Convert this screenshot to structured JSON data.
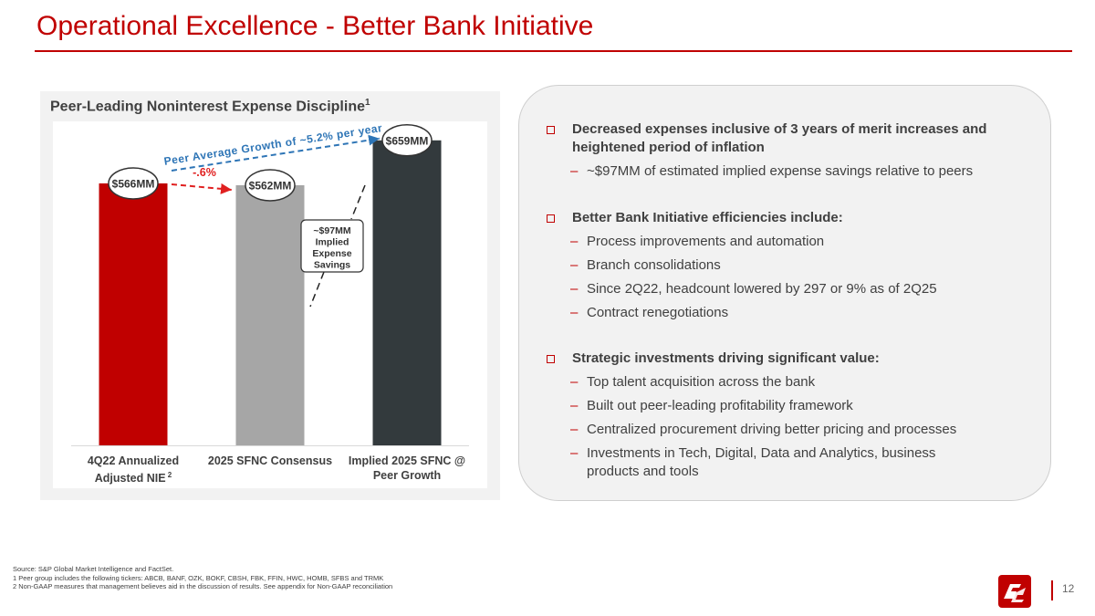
{
  "header": {
    "title": "Operational Excellence - Better Bank Initiative"
  },
  "chart_panel": {
    "title": "Peer-Leading Noninterest Expense Discipline",
    "title_sup": "1"
  },
  "chart_data": {
    "type": "bar",
    "title": "Peer-Leading Noninterest Expense Discipline",
    "units": "$MM",
    "categories": [
      "4Q22 Annualized Adjusted NIE",
      "2025 SFNC Consensus",
      "Implied 2025 SFNC @ Peer Growth"
    ],
    "category_lines": [
      [
        "4Q22 Annualized",
        "Adjusted NIE"
      ],
      [
        "2025 SFNC Consensus"
      ],
      [
        "Implied 2025 SFNC @",
        "Peer Growth"
      ]
    ],
    "category_sup": [
      "2",
      "",
      ""
    ],
    "values": [
      566,
      562,
      659
    ],
    "data_labels": [
      "$566MM",
      "$562MM",
      "$659MM"
    ],
    "colors": [
      "#c00000",
      "#a6a6a6",
      "#333a3d"
    ],
    "ylim": [
      0,
      700
    ],
    "annotations": {
      "change_label": "-.6%",
      "peer_growth_label": "Peer Average Growth of ~5.2% per year",
      "savings_box": [
        "~$97MM",
        "Implied",
        "Expense",
        "Savings"
      ]
    }
  },
  "bullets": [
    {
      "head": "Decreased expenses inclusive of 3 years of merit increases and heightened period of inflation",
      "subs": [
        "~$97MM of estimated implied expense savings relative to peers"
      ]
    },
    {
      "head": "Better Bank Initiative efficiencies include:",
      "subs": [
        "Process improvements and automation",
        "Branch consolidations",
        "Since 2Q22, headcount lowered by 297 or 9% as of 2Q25",
        "Contract renegotiations"
      ]
    },
    {
      "head": "Strategic investments driving significant value:",
      "subs": [
        "Top talent acquisition across the bank",
        "Built out peer-leading profitability framework",
        "Centralized procurement driving better pricing and processes",
        "Investments in Tech, Digital, Data and Analytics, business products and tools"
      ]
    }
  ],
  "dash_glyph": "–",
  "footnotes": [
    "Source: S&P Global Market Intelligence and FactSet.",
    "1  Peer group includes the following tickers: ABCB, BANF, OZK, BOKF, CBSH, FBK, FFIN, HWC, HOMB, SFBS and TRMK",
    "2  Non-GAAP measures that management believes aid in the discussion of results. See appendix for Non-GAAP reconciliation"
  ],
  "footer": {
    "page_number": "12",
    "logo_icon": "sfnc-logo-icon",
    "accent": "#c00000"
  }
}
